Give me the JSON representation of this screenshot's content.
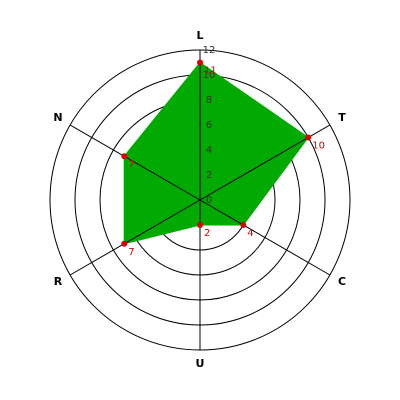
{
  "chart_data": {
    "type": "radar",
    "categories": [
      "L",
      "T",
      "C",
      "U",
      "R",
      "N"
    ],
    "values": [
      11,
      10,
      4,
      2,
      7,
      7
    ],
    "color": "#00aa00",
    "point_color": "#dd0000",
    "ylim": [
      0,
      12
    ],
    "yticks": [
      0,
      2,
      4,
      6,
      8,
      10,
      12
    ],
    "grid": true
  }
}
